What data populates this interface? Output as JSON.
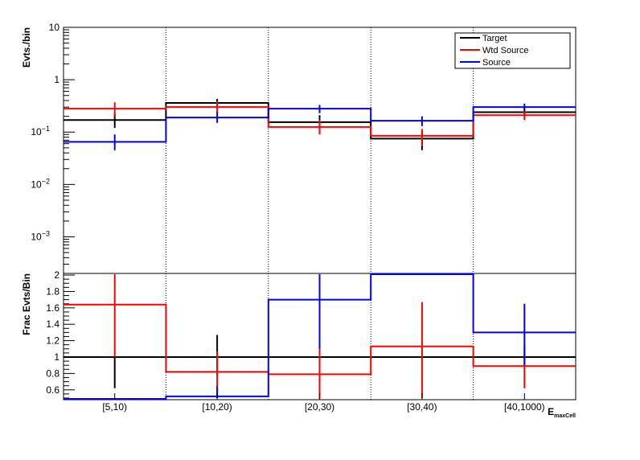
{
  "chart_data": [
    {
      "type": "line",
      "panel": "top",
      "ylabel": "Evts./bin",
      "yscale": "log",
      "ylim": [
        0.0002,
        10
      ],
      "yticks": [
        {
          "base": "10",
          "exp": "",
          "value": 10
        },
        {
          "base": "1",
          "exp": "",
          "value": 1
        },
        {
          "base": "10",
          "exp": "−1",
          "value": 0.1
        },
        {
          "base": "10",
          "exp": "−2",
          "value": 0.01
        },
        {
          "base": "10",
          "exp": "−3",
          "value": 0.001
        }
      ],
      "categories": [
        "[5,10)",
        "[10,20)",
        "[20,30)",
        "[30,40)",
        "[40,1000)"
      ],
      "legend": {
        "position": "top-right",
        "entries": [
          {
            "label": "Target",
            "color": "#000000"
          },
          {
            "label": "Wtd Source",
            "color": "#ff0000"
          },
          {
            "label": "Source",
            "color": "#0000ff"
          }
        ]
      },
      "series": [
        {
          "name": "Target",
          "color": "#000000",
          "values": [
            0.17,
            0.36,
            0.155,
            0.075,
            0.24
          ],
          "err_low": [
            0.12,
            0.29,
            0.11,
            0.045,
            0.2
          ],
          "err_high": [
            0.23,
            0.43,
            0.21,
            0.105,
            0.29
          ]
        },
        {
          "name": "Wtd Source",
          "color": "#ff0000",
          "values": [
            0.28,
            0.3,
            0.125,
            0.085,
            0.21
          ],
          "err_low": [
            0.2,
            0.22,
            0.09,
            0.055,
            0.17
          ],
          "err_high": [
            0.37,
            0.39,
            0.17,
            0.115,
            0.25
          ]
        },
        {
          "name": "Source",
          "color": "#0000ff",
          "values": [
            0.065,
            0.19,
            0.28,
            0.165,
            0.3
          ],
          "err_low": [
            0.045,
            0.15,
            0.23,
            0.13,
            0.26
          ],
          "err_high": [
            0.09,
            0.24,
            0.33,
            0.2,
            0.35
          ]
        }
      ]
    },
    {
      "type": "line",
      "panel": "bottom",
      "ylabel": "Frac Evts/Bin",
      "ylim": [
        0.48,
        2.02
      ],
      "yticks": [
        0.6,
        0.8,
        1,
        1.2,
        1.4,
        1.6,
        1.8,
        2
      ],
      "ytick_labels": [
        "0.6",
        "0.8",
        "1",
        "1.2",
        "1.4",
        "1.6",
        "1.8",
        "2"
      ],
      "xlabel": "E_maxCell",
      "categories": [
        "[5,10)",
        "[10,20)",
        "[20,30)",
        "[30,40)",
        "[40,1000)"
      ],
      "series": [
        {
          "name": "Target",
          "color": "#000000",
          "values": [
            1,
            1,
            1,
            1,
            1
          ],
          "err_low": [
            0.62,
            0.78,
            1,
            1,
            1
          ],
          "err_high": [
            1,
            1.27,
            1,
            1,
            1
          ]
        },
        {
          "name": "Wtd Source",
          "color": "#ff0000",
          "values": [
            1.64,
            0.82,
            0.79,
            1.13,
            0.89
          ],
          "err_low": [
            1.0,
            0.5,
            0.48,
            0.5,
            0.62
          ],
          "err_high": [
            2.02,
            1.07,
            1.1,
            1.67,
            1.15
          ]
        },
        {
          "name": "Source",
          "color": "#0000ff",
          "values": [
            0.49,
            0.52,
            1.7,
            2.03,
            1.3
          ],
          "err_low": [
            0.49,
            0.5,
            1.1,
            2.03,
            0.9
          ],
          "err_high": [
            0.49,
            0.64,
            2.02,
            2.03,
            1.65
          ]
        }
      ]
    }
  ]
}
